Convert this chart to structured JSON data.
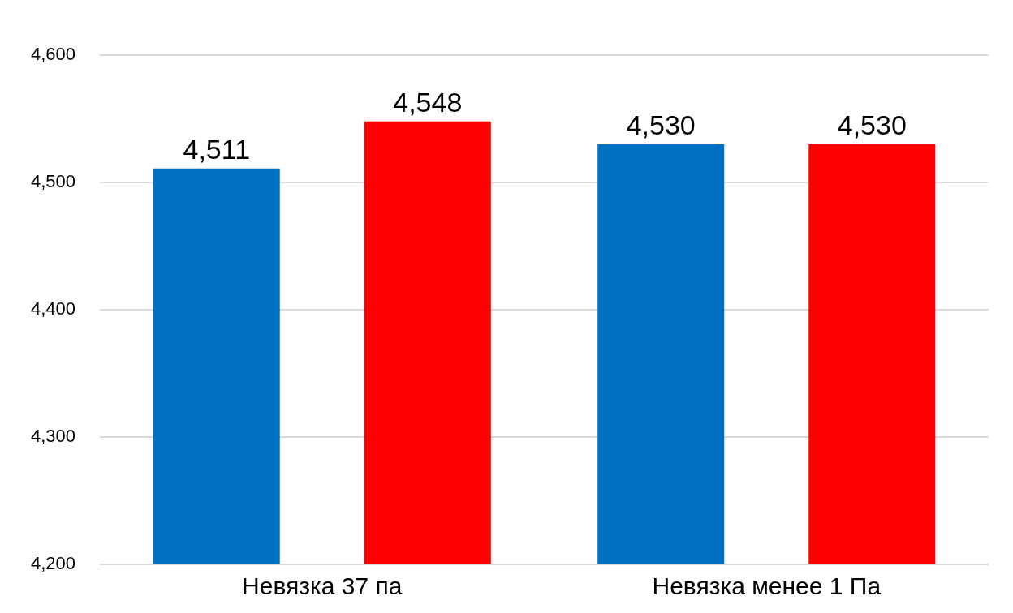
{
  "chart_data": {
    "type": "bar",
    "categories": [
      "Невязка 37 па",
      "Невязка менее 1 Па"
    ],
    "series": [
      {
        "color": "#0070c0",
        "values": [
          4511,
          4530
        ],
        "value_labels": [
          "4,511",
          "4,530"
        ]
      },
      {
        "color": "#ff0000",
        "values": [
          4548,
          4530
        ],
        "value_labels": [
          "4,548",
          "4,530"
        ]
      }
    ],
    "ylim": [
      4200,
      4600
    ],
    "yticks": [
      {
        "value": 4200,
        "label": "4,200"
      },
      {
        "value": 4300,
        "label": "4,300"
      },
      {
        "value": 4400,
        "label": "4,400"
      },
      {
        "value": 4500,
        "label": "4,500"
      },
      {
        "value": 4600,
        "label": "4,600"
      }
    ],
    "grid": "y",
    "legend": false
  }
}
